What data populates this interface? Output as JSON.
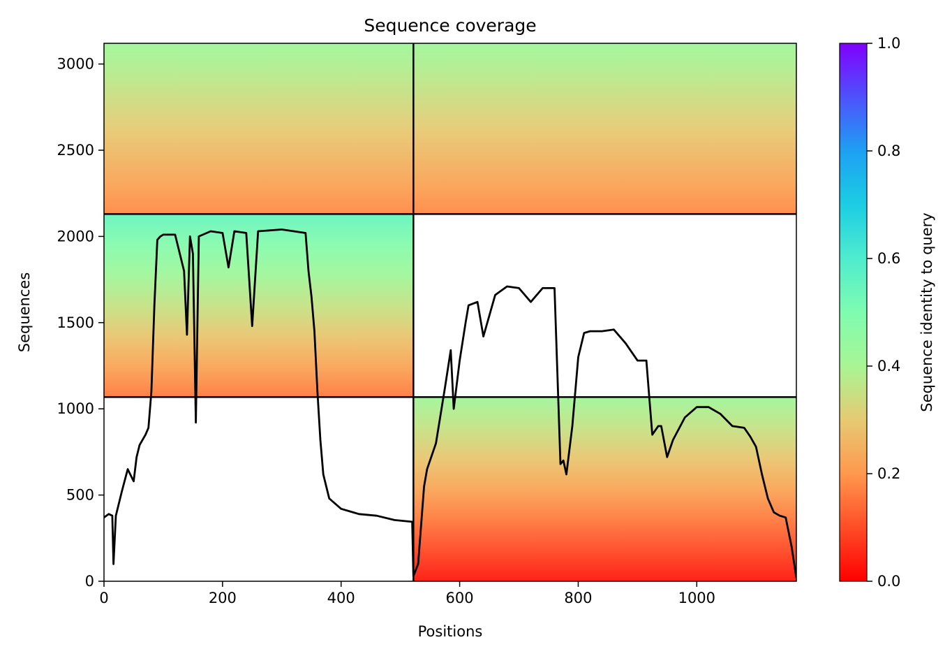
{
  "chart_data": {
    "type": "heatmap",
    "title": "Sequence coverage",
    "xlabel": "Positions",
    "ylabel": "Sequences",
    "colorbar_label": "Sequence identity to query",
    "colormap": "rainbow_r",
    "xlim": [
      0,
      1168
    ],
    "ylim": [
      0,
      3120
    ],
    "xticks": [
      0,
      200,
      400,
      600,
      800,
      1000
    ],
    "yticks": [
      0,
      500,
      1000,
      1500,
      2000,
      2500,
      3000
    ],
    "colorbar_range": [
      0.0,
      1.0
    ],
    "colorbar_ticks": [
      "0.0",
      "0.2",
      "0.4",
      "0.6",
      "0.8",
      "1.0"
    ],
    "segment_boundaries": {
      "x": [
        522
      ],
      "y": [
        1068,
        2130
      ]
    },
    "blocks": [
      {
        "x_range": [
          0,
          522
        ],
        "y_range": [
          2130,
          3120
        ],
        "identity_top": 0.42,
        "identity_bottom": 0.18
      },
      {
        "x_range": [
          522,
          1168
        ],
        "y_range": [
          2130,
          3120
        ],
        "identity_top": 0.42,
        "identity_bottom": 0.18
      },
      {
        "x_range": [
          0,
          522
        ],
        "y_range": [
          1068,
          2130
        ],
        "identity_top": 0.55,
        "identity_bottom": 0.16
      },
      {
        "x_range": [
          522,
          1168
        ],
        "y_range": [
          0,
          1068
        ],
        "identity_top": 0.42,
        "identity_bottom": 0.03
      }
    ],
    "series": [
      {
        "name": "",
        "line_color": "#000000",
        "x": [
          0,
          8,
          14,
          16,
          20,
          30,
          40,
          50,
          55,
          60,
          70,
          75,
          80,
          85,
          90,
          95,
          100,
          120,
          135,
          140,
          145,
          150,
          155,
          160,
          180,
          200,
          210,
          220,
          240,
          250,
          260,
          300,
          320,
          340,
          345,
          350,
          355,
          360,
          365,
          370,
          380,
          400,
          430,
          460,
          490,
          520,
          522,
          530,
          540,
          545,
          560,
          575,
          585,
          590,
          600,
          610,
          615,
          630,
          640,
          660,
          680,
          700,
          720,
          740,
          750,
          760,
          770,
          775,
          780,
          790,
          800,
          810,
          820,
          840,
          860,
          880,
          900,
          915,
          920,
          925,
          935,
          940,
          950,
          960,
          980,
          1000,
          1020,
          1040,
          1060,
          1080,
          1090,
          1100,
          1110,
          1120,
          1130,
          1140,
          1150,
          1160,
          1168
        ],
        "y": [
          370,
          390,
          380,
          100,
          380,
          520,
          650,
          580,
          720,
          790,
          850,
          890,
          1100,
          1600,
          1980,
          2000,
          2010,
          2010,
          1800,
          1430,
          2000,
          1900,
          920,
          2000,
          2030,
          2020,
          1820,
          2030,
          2020,
          1480,
          2030,
          2040,
          2030,
          2020,
          1800,
          1650,
          1450,
          1100,
          820,
          620,
          480,
          420,
          390,
          380,
          355,
          345,
          30,
          100,
          550,
          650,
          800,
          1120,
          1340,
          1000,
          1280,
          1500,
          1600,
          1620,
          1420,
          1660,
          1710,
          1700,
          1620,
          1700,
          1700,
          1700,
          680,
          700,
          620,
          900,
          1300,
          1440,
          1450,
          1450,
          1460,
          1380,
          1280,
          1280,
          1060,
          850,
          900,
          900,
          720,
          820,
          950,
          1010,
          1010,
          970,
          900,
          890,
          840,
          780,
          620,
          480,
          400,
          380,
          370,
          200,
          20
        ]
      }
    ]
  }
}
